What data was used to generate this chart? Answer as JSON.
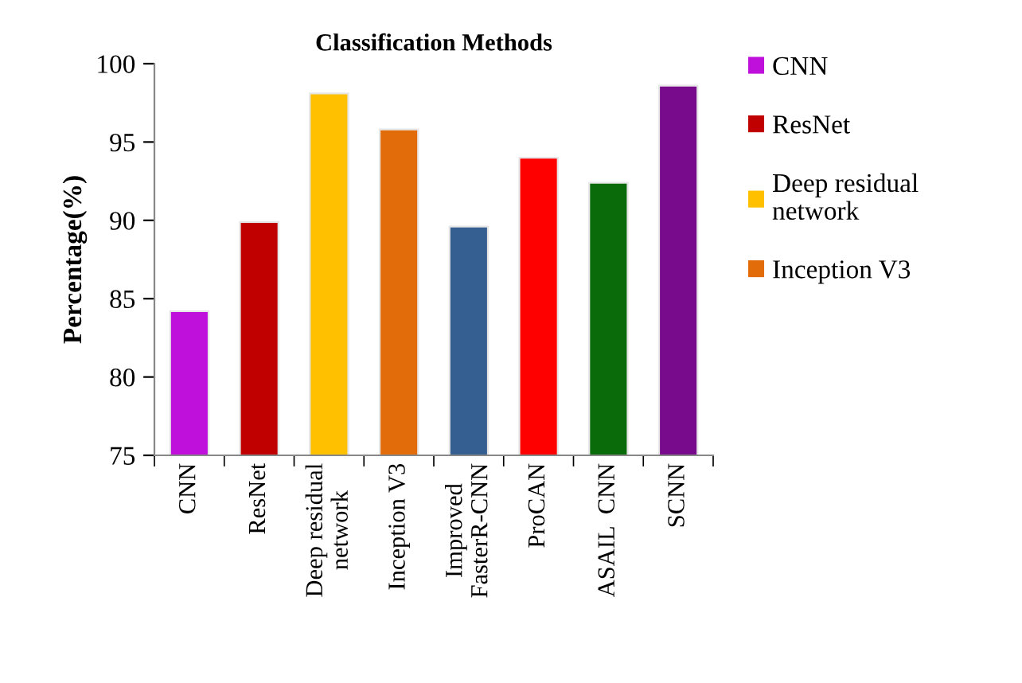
{
  "chart_data": {
    "type": "bar",
    "title": "Classification Methods",
    "ylabel": "Percentage(%)",
    "categories": [
      "CNN",
      "ResNet",
      "Deep residual\nnetwork",
      "Inception V3",
      "Improved\nFasterR-CNN",
      "ProCAN",
      "ASAIL  CNN",
      "SCNN"
    ],
    "series": [
      {
        "name": "CNN",
        "color": "#bf0fdb",
        "values": [
          84.2,
          null,
          null,
          null,
          null,
          null,
          null,
          null
        ]
      },
      {
        "name": "ResNet",
        "color": "#c00000",
        "values": [
          null,
          89.9,
          null,
          null,
          null,
          null,
          null,
          null
        ]
      },
      {
        "name": "Deep residual\nnetwork",
        "color": "#ffc000",
        "values": [
          null,
          null,
          98.1,
          null,
          null,
          null,
          null,
          null
        ]
      },
      {
        "name": "Inception V3",
        "color": "#e36c0a",
        "values": [
          null,
          null,
          null,
          95.8,
          null,
          null,
          null,
          null
        ]
      },
      {
        "color": "#355f91",
        "values": [
          null,
          null,
          null,
          null,
          89.6,
          null,
          null,
          null
        ]
      },
      {
        "color": "#ff0000",
        "values": [
          null,
          null,
          null,
          null,
          null,
          94.0,
          null,
          null
        ]
      },
      {
        "color": "#0a6b0a",
        "values": [
          null,
          null,
          null,
          null,
          null,
          null,
          92.4,
          null
        ]
      },
      {
        "color": "#780a8c",
        "values": [
          null,
          null,
          null,
          null,
          null,
          null,
          null,
          98.6
        ]
      }
    ],
    "ylim": [
      75,
      100
    ],
    "yticks": [
      75,
      80,
      85,
      90,
      95,
      100
    ],
    "grid": false,
    "legend": "top right"
  }
}
